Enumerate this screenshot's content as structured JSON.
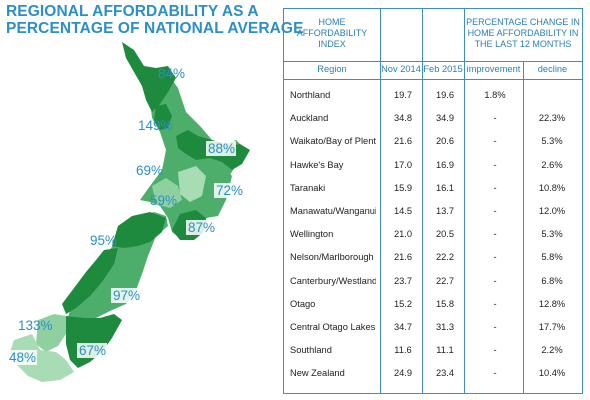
{
  "title": {
    "line1": "REGIONAL AFFORDABILITY AS A",
    "line2": "PERCENTAGE OF NATIONAL AVERAGE"
  },
  "colors": {
    "title_blue": "#2b8fc8",
    "dark_green": "#1e8a3e",
    "mid_green": "#4cae6a",
    "light_green": "#8fd0a0",
    "table_border": "#3b8fc4"
  },
  "map": {
    "labels": [
      {
        "region": "Northland",
        "text": "84%"
      },
      {
        "region": "Auckland",
        "text": "149%"
      },
      {
        "region": "Bay of Plenty",
        "text": "88%"
      },
      {
        "region": "Waikato",
        "text": "69%"
      },
      {
        "region": "Taupo",
        "text": "59%"
      },
      {
        "region": "Hawke's Bay",
        "text": "72%"
      },
      {
        "region": "Wellington",
        "text": "87%"
      },
      {
        "region": "Nelson/Marlborough",
        "text": "95%"
      },
      {
        "region": "Canterbury",
        "text": "97%"
      },
      {
        "region": "Central Otago Lakes",
        "text": "133%"
      },
      {
        "region": "Southland",
        "text": "48%"
      },
      {
        "region": "Otago",
        "text": "67%"
      }
    ]
  },
  "table": {
    "group_headers": {
      "index_line1": "HOME",
      "index_line2": "AFFORDABILITY",
      "index_line3": "INDEX",
      "change_line1": "PERCENTAGE CHANGE IN",
      "change_line2": "HOME AFFORDABILITY IN",
      "change_line3": "THE LAST 12 MONTHS"
    },
    "columns": {
      "region": "Region",
      "nov": "Nov 2014",
      "feb": "Feb 2015",
      "improvement": "improvement",
      "decline": "decline"
    },
    "rows": [
      {
        "region": "Northland",
        "nov": "19.7",
        "feb": "19.6",
        "improvement": "1.8%",
        "decline": ""
      },
      {
        "region": "Auckland",
        "nov": "34.8",
        "feb": "34.9",
        "improvement": "-",
        "decline": "22.3%"
      },
      {
        "region": "Waikato/Bay of Plenty",
        "nov": "21.6",
        "feb": "20.6",
        "improvement": "-",
        "decline": "5.3%"
      },
      {
        "region": "Hawke's Bay",
        "nov": "17.0",
        "feb": "16.9",
        "improvement": "-",
        "decline": "2.6%"
      },
      {
        "region": "Taranaki",
        "nov": "15.9",
        "feb": "16.1",
        "improvement": "-",
        "decline": "10.8%"
      },
      {
        "region": "Manawatu/Wanganui",
        "nov": "14.5",
        "feb": "13.7",
        "improvement": "-",
        "decline": "12.0%"
      },
      {
        "region": "Wellington",
        "nov": "21.0",
        "feb": "20.5",
        "improvement": "-",
        "decline": "5.3%"
      },
      {
        "region": "Nelson/Marlborough",
        "nov": "21.6",
        "feb": "22.2",
        "improvement": "-",
        "decline": "5.8%"
      },
      {
        "region": "Canterbury/Westland",
        "nov": "23.7",
        "feb": "22.7",
        "improvement": "-",
        "decline": "6.8%"
      },
      {
        "region": "Otago",
        "nov": "15.2",
        "feb": "15.8",
        "improvement": "-",
        "decline": "12.8%"
      },
      {
        "region": "Central Otago Lakes",
        "nov": "34.7",
        "feb": "31.3",
        "improvement": "-",
        "decline": "17.7%"
      },
      {
        "region": "Southland",
        "nov": "11.6",
        "feb": "11.1",
        "improvement": "-",
        "decline": "2.2%"
      },
      {
        "region": "New Zealand",
        "nov": "24.9",
        "feb": "23.4",
        "improvement": "-",
        "decline": "10.4%"
      }
    ]
  }
}
